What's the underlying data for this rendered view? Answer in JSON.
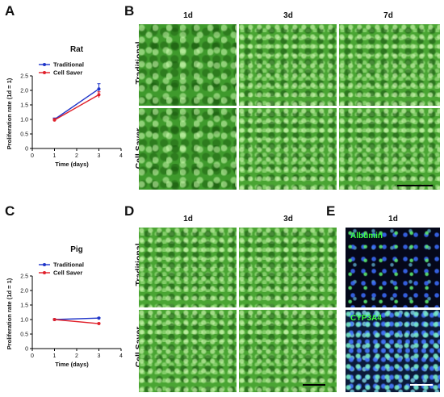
{
  "panels": {
    "A": "A",
    "B": "B",
    "C": "C",
    "D": "D",
    "E": "E"
  },
  "chart_data": [
    {
      "type": "line",
      "title": "Rat",
      "xlabel": "Time (days)",
      "ylabel": "Proliferation rate (1d = 1)",
      "xlim": [
        0,
        4
      ],
      "ylim": [
        0,
        2.5
      ],
      "xticks": [
        "0",
        "1",
        "2",
        "3",
        "4"
      ],
      "yticks": [
        "0",
        "0.5",
        "1.0",
        "1.5",
        "2.0",
        "2.5"
      ],
      "legend_position": "top-left",
      "series": [
        {
          "name": "Traditional",
          "color": "#1f35c9",
          "x": [
            1,
            3
          ],
          "y": [
            1.0,
            2.05
          ],
          "err": [
            0.05,
            0.18
          ]
        },
        {
          "name": "Cell Saver",
          "color": "#e0202a",
          "x": [
            1,
            3
          ],
          "y": [
            0.98,
            1.85
          ],
          "err": [
            0.05,
            0.1
          ]
        }
      ]
    },
    {
      "type": "line",
      "title": "Pig",
      "xlabel": "Time (days)",
      "ylabel": "Proliferation rate (1d = 1)",
      "xlim": [
        0,
        4
      ],
      "ylim": [
        0,
        2.5
      ],
      "xticks": [
        "0",
        "1",
        "2",
        "3",
        "4"
      ],
      "yticks": [
        "0",
        "0.5",
        "1.0",
        "1.5",
        "2.0",
        "2.5"
      ],
      "legend_position": "top-left",
      "series": [
        {
          "name": "Traditional",
          "color": "#1f35c9",
          "x": [
            1,
            3
          ],
          "y": [
            1.0,
            1.05
          ],
          "err": [
            0.02,
            0.02
          ]
        },
        {
          "name": "Cell Saver",
          "color": "#e0202a",
          "x": [
            1,
            3
          ],
          "y": [
            1.0,
            0.86
          ],
          "err": [
            0.02,
            0.02
          ]
        }
      ]
    }
  ],
  "grid_B": {
    "columns": [
      "1d",
      "3d",
      "7d"
    ],
    "rows": [
      "Traditional",
      "Cell Saver"
    ]
  },
  "grid_D": {
    "columns": [
      "1d",
      "3d"
    ],
    "rows": [
      "Traditional",
      "Cell Saver"
    ]
  },
  "grid_E": {
    "column": "1d",
    "stains": [
      "Albumin",
      "CYP3A4"
    ],
    "stain_color": "#3cff3c"
  }
}
